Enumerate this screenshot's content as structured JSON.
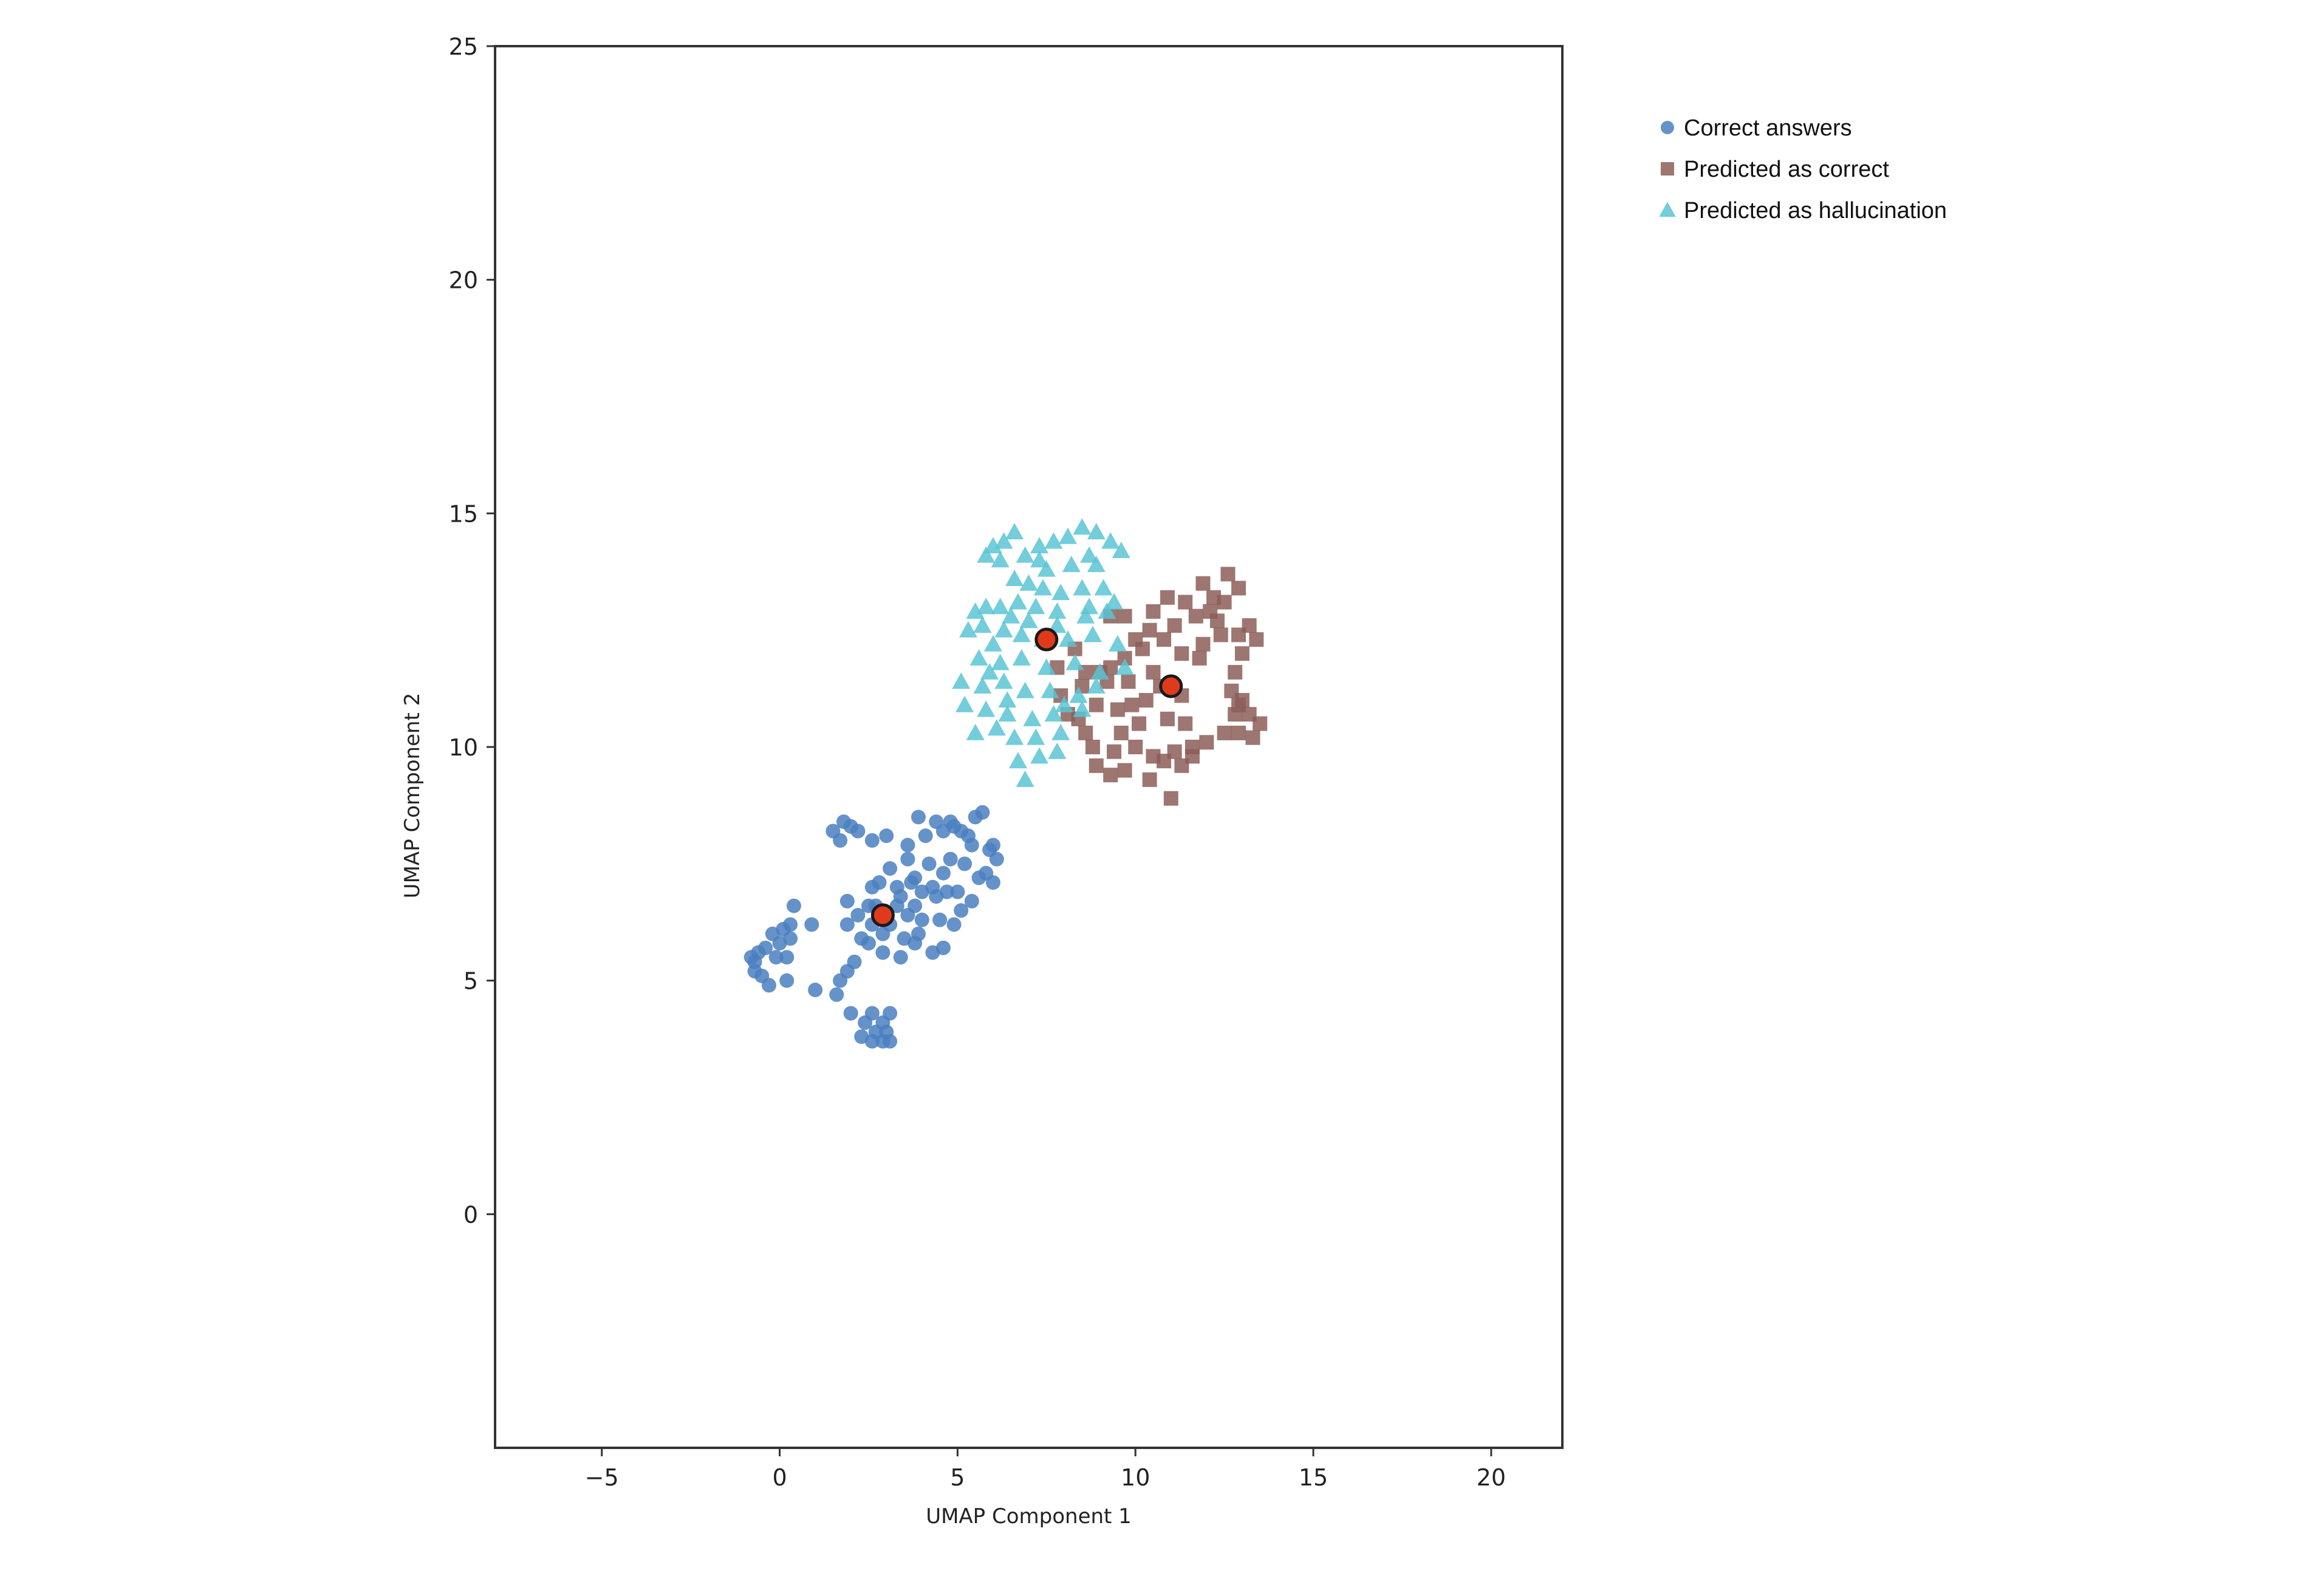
{
  "chart_data": {
    "type": "scatter",
    "title": "",
    "xlabel": "UMAP Component 1",
    "ylabel": "UMAP Component 2",
    "xlim": [
      -8,
      22
    ],
    "ylim": [
      -5,
      25
    ],
    "xticks": [
      -5,
      0,
      5,
      10,
      15,
      20
    ],
    "yticks": [
      0,
      5,
      10,
      15,
      20,
      25
    ],
    "grid": false,
    "legend_position": "outside-top-right",
    "series": [
      {
        "name": "Correct answers",
        "marker": "circle",
        "color": "#4a7fbf",
        "points": [
          [
            1.5,
            8.2
          ],
          [
            1.8,
            8.4
          ],
          [
            2.0,
            8.3
          ],
          [
            1.7,
            8.0
          ],
          [
            2.2,
            8.2
          ],
          [
            2.6,
            8.0
          ],
          [
            3.0,
            8.1
          ],
          [
            3.6,
            7.9
          ],
          [
            3.9,
            8.5
          ],
          [
            4.4,
            8.4
          ],
          [
            4.9,
            8.3
          ],
          [
            5.1,
            8.2
          ],
          [
            5.3,
            8.1
          ],
          [
            5.5,
            8.5
          ],
          [
            5.7,
            8.6
          ],
          [
            4.1,
            8.1
          ],
          [
            4.6,
            8.2
          ],
          [
            4.8,
            8.4
          ],
          [
            5.9,
            7.8
          ],
          [
            6.1,
            7.6
          ],
          [
            6.0,
            7.9
          ],
          [
            5.8,
            7.3
          ],
          [
            6.0,
            7.1
          ],
          [
            5.6,
            7.2
          ],
          [
            5.4,
            6.7
          ],
          [
            5.1,
            6.5
          ],
          [
            5.0,
            6.9
          ],
          [
            4.7,
            6.9
          ],
          [
            4.6,
            7.3
          ],
          [
            4.2,
            7.5
          ],
          [
            3.8,
            7.2
          ],
          [
            3.6,
            7.6
          ],
          [
            3.1,
            7.4
          ],
          [
            2.8,
            7.1
          ],
          [
            2.6,
            7.0
          ],
          [
            3.3,
            7.0
          ],
          [
            3.4,
            6.8
          ],
          [
            4.0,
            6.9
          ],
          [
            4.4,
            6.8
          ],
          [
            4.9,
            6.2
          ],
          [
            4.5,
            6.3
          ],
          [
            4.0,
            6.3
          ],
          [
            3.9,
            6.0
          ],
          [
            3.6,
            6.4
          ],
          [
            3.3,
            6.6
          ],
          [
            3.1,
            6.2
          ],
          [
            2.9,
            6.0
          ],
          [
            2.6,
            6.2
          ],
          [
            2.3,
            5.9
          ],
          [
            2.2,
            6.4
          ],
          [
            1.9,
            6.2
          ],
          [
            2.5,
            6.6
          ],
          [
            3.5,
            5.9
          ],
          [
            3.8,
            5.8
          ],
          [
            4.3,
            5.6
          ],
          [
            4.6,
            5.7
          ],
          [
            3.4,
            5.5
          ],
          [
            2.9,
            5.6
          ],
          [
            2.5,
            5.8
          ],
          [
            2.1,
            5.4
          ],
          [
            1.9,
            5.2
          ],
          [
            1.7,
            5.0
          ],
          [
            1.6,
            4.7
          ],
          [
            1.0,
            4.8
          ],
          [
            2.0,
            4.3
          ],
          [
            2.4,
            4.1
          ],
          [
            2.6,
            4.3
          ],
          [
            2.9,
            4.1
          ],
          [
            3.1,
            4.3
          ],
          [
            2.3,
            3.8
          ],
          [
            2.6,
            3.7
          ],
          [
            2.9,
            3.7
          ],
          [
            3.1,
            3.7
          ],
          [
            2.7,
            3.9
          ],
          [
            3.0,
            3.9
          ],
          [
            0.4,
            6.6
          ],
          [
            0.9,
            6.2
          ],
          [
            0.3,
            6.2
          ],
          [
            0.1,
            6.1
          ],
          [
            -0.2,
            6.0
          ],
          [
            0.3,
            5.9
          ],
          [
            -0.4,
            5.7
          ],
          [
            -0.6,
            5.6
          ],
          [
            -0.7,
            5.4
          ],
          [
            -0.1,
            5.5
          ],
          [
            0.2,
            5.5
          ],
          [
            -0.5,
            5.1
          ],
          [
            0.2,
            5.0
          ],
          [
            -0.3,
            4.9
          ],
          [
            -0.7,
            5.2
          ],
          [
            0.0,
            5.8
          ],
          [
            -0.8,
            5.5
          ],
          [
            1.9,
            6.7
          ],
          [
            2.7,
            6.6
          ],
          [
            3.7,
            7.1
          ],
          [
            4.3,
            7.0
          ],
          [
            5.2,
            7.5
          ],
          [
            5.4,
            7.9
          ],
          [
            4.8,
            7.6
          ],
          [
            3.8,
            6.6
          ]
        ]
      },
      {
        "name": "Predicted as correct",
        "marker": "square",
        "color": "#8c5e58",
        "points": [
          [
            9.3,
            12.8
          ],
          [
            9.7,
            12.8
          ],
          [
            10.5,
            12.9
          ],
          [
            10.9,
            13.2
          ],
          [
            11.4,
            13.1
          ],
          [
            11.9,
            13.5
          ],
          [
            12.2,
            13.2
          ],
          [
            12.6,
            13.7
          ],
          [
            12.9,
            13.4
          ],
          [
            12.5,
            13.1
          ],
          [
            12.1,
            12.9
          ],
          [
            11.7,
            12.8
          ],
          [
            11.1,
            12.6
          ],
          [
            10.4,
            12.5
          ],
          [
            10.0,
            12.3
          ],
          [
            10.2,
            12.1
          ],
          [
            9.7,
            11.9
          ],
          [
            9.3,
            11.7
          ],
          [
            9.2,
            11.4
          ],
          [
            9.8,
            11.4
          ],
          [
            10.5,
            11.6
          ],
          [
            11.3,
            12.0
          ],
          [
            11.8,
            11.9
          ],
          [
            12.4,
            12.4
          ],
          [
            12.9,
            12.4
          ],
          [
            13.2,
            12.6
          ],
          [
            13.4,
            12.3
          ],
          [
            13.0,
            12.0
          ],
          [
            12.8,
            11.6
          ],
          [
            12.7,
            11.2
          ],
          [
            12.9,
            10.9
          ],
          [
            13.2,
            10.7
          ],
          [
            13.5,
            10.5
          ],
          [
            13.3,
            10.2
          ],
          [
            12.9,
            10.3
          ],
          [
            12.5,
            10.3
          ],
          [
            12.8,
            10.7
          ],
          [
            13.0,
            11.0
          ],
          [
            12.0,
            10.1
          ],
          [
            11.6,
            10.0
          ],
          [
            11.1,
            9.9
          ],
          [
            10.8,
            9.7
          ],
          [
            11.3,
            9.6
          ],
          [
            11.6,
            9.8
          ],
          [
            10.5,
            9.8
          ],
          [
            10.0,
            10.0
          ],
          [
            9.7,
            9.5
          ],
          [
            9.3,
            9.4
          ],
          [
            9.4,
            9.9
          ],
          [
            8.8,
            10.0
          ],
          [
            8.6,
            10.3
          ],
          [
            8.1,
            10.7
          ],
          [
            7.9,
            11.1
          ],
          [
            8.5,
            11.3
          ],
          [
            8.9,
            10.9
          ],
          [
            9.5,
            10.8
          ],
          [
            9.9,
            10.9
          ],
          [
            10.3,
            11.0
          ],
          [
            10.7,
            11.3
          ],
          [
            11.3,
            11.1
          ],
          [
            10.9,
            10.6
          ],
          [
            10.1,
            10.5
          ],
          [
            8.4,
            10.6
          ],
          [
            11.0,
            8.9
          ],
          [
            10.4,
            9.3
          ],
          [
            8.9,
            9.6
          ],
          [
            9.0,
            11.6
          ],
          [
            11.9,
            12.2
          ],
          [
            12.3,
            12.7
          ],
          [
            10.8,
            12.3
          ],
          [
            11.4,
            10.5
          ],
          [
            9.6,
            10.3
          ],
          [
            7.8,
            11.7
          ],
          [
            8.3,
            12.1
          ],
          [
            8.6,
            11.6
          ]
        ]
      },
      {
        "name": "Predicted as hallucination",
        "marker": "triangle",
        "color": "#5bc4d4",
        "points": [
          [
            5.8,
            14.1
          ],
          [
            6.0,
            14.3
          ],
          [
            6.3,
            14.4
          ],
          [
            6.6,
            14.6
          ],
          [
            6.9,
            14.1
          ],
          [
            7.3,
            14.3
          ],
          [
            7.7,
            14.4
          ],
          [
            8.1,
            14.5
          ],
          [
            8.5,
            14.7
          ],
          [
            8.9,
            14.6
          ],
          [
            9.3,
            14.4
          ],
          [
            9.6,
            14.2
          ],
          [
            7.5,
            13.8
          ],
          [
            8.2,
            13.9
          ],
          [
            8.9,
            13.9
          ],
          [
            6.6,
            13.6
          ],
          [
            7.0,
            13.5
          ],
          [
            7.4,
            13.4
          ],
          [
            7.9,
            13.3
          ],
          [
            8.5,
            13.4
          ],
          [
            9.1,
            13.4
          ],
          [
            5.5,
            12.9
          ],
          [
            5.8,
            13.0
          ],
          [
            6.2,
            13.0
          ],
          [
            6.7,
            13.1
          ],
          [
            7.2,
            13.0
          ],
          [
            7.8,
            12.9
          ],
          [
            8.6,
            12.8
          ],
          [
            9.2,
            12.9
          ],
          [
            5.3,
            12.5
          ],
          [
            5.7,
            12.6
          ],
          [
            6.3,
            12.5
          ],
          [
            6.8,
            12.4
          ],
          [
            7.4,
            12.3
          ],
          [
            8.1,
            12.3
          ],
          [
            8.8,
            12.4
          ],
          [
            9.5,
            12.2
          ],
          [
            5.6,
            11.9
          ],
          [
            6.2,
            11.8
          ],
          [
            6.8,
            11.9
          ],
          [
            7.5,
            11.7
          ],
          [
            8.3,
            11.8
          ],
          [
            9.0,
            11.6
          ],
          [
            9.7,
            11.7
          ],
          [
            5.1,
            11.4
          ],
          [
            5.7,
            11.3
          ],
          [
            6.3,
            11.4
          ],
          [
            6.9,
            11.2
          ],
          [
            7.6,
            11.2
          ],
          [
            8.4,
            11.1
          ],
          [
            8.9,
            11.3
          ],
          [
            5.2,
            10.9
          ],
          [
            5.8,
            10.8
          ],
          [
            6.4,
            10.7
          ],
          [
            7.1,
            10.6
          ],
          [
            7.7,
            10.7
          ],
          [
            8.5,
            10.8
          ],
          [
            5.5,
            10.3
          ],
          [
            6.1,
            10.4
          ],
          [
            6.6,
            10.2
          ],
          [
            7.2,
            10.2
          ],
          [
            7.9,
            10.3
          ],
          [
            6.7,
            9.7
          ],
          [
            7.3,
            9.8
          ],
          [
            7.8,
            9.9
          ],
          [
            6.9,
            9.3
          ],
          [
            6.4,
            11.0
          ],
          [
            7.8,
            12.6
          ],
          [
            8.7,
            13.0
          ],
          [
            6.0,
            12.2
          ],
          [
            7.0,
            12.7
          ],
          [
            9.4,
            13.1
          ],
          [
            8.0,
            10.9
          ],
          [
            5.9,
            11.6
          ],
          [
            6.5,
            12.8
          ],
          [
            7.3,
            14.0
          ],
          [
            8.7,
            14.1
          ],
          [
            6.2,
            14.0
          ]
        ]
      }
    ],
    "centroids": {
      "marker": "circle",
      "color": "#e03a1c",
      "edgecolor": "#1a1a1a",
      "points": [
        [
          2.9,
          6.4
        ],
        [
          7.5,
          12.3
        ],
        [
          11.0,
          11.3
        ]
      ]
    }
  }
}
